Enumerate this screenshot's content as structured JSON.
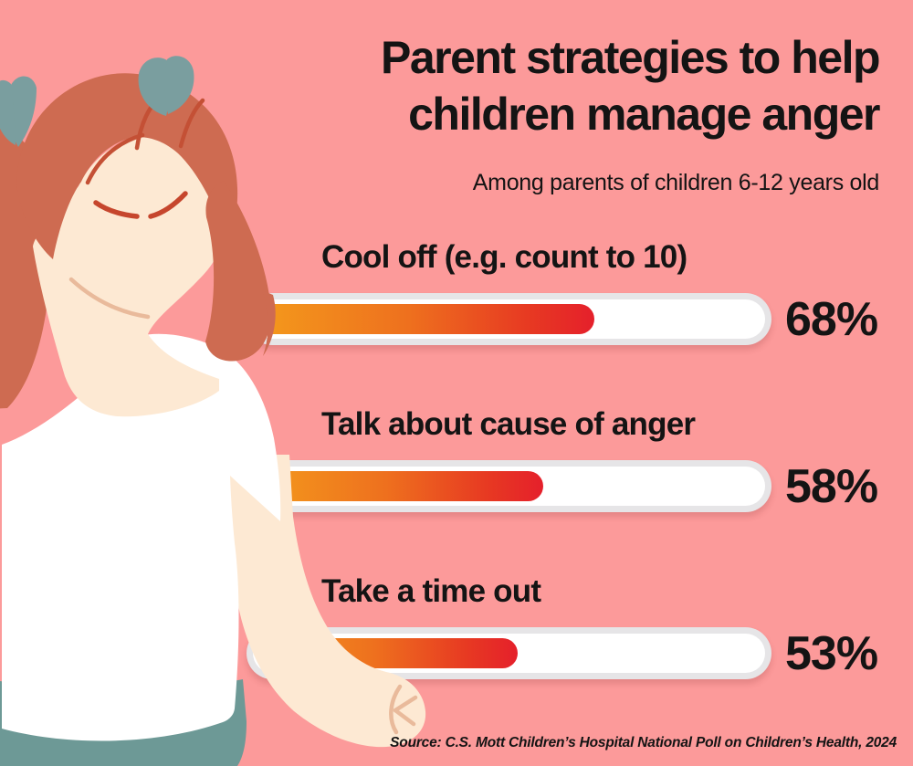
{
  "header": {
    "title_line1": "Parent strategies to help",
    "title_line2": "children manage anger",
    "subtitle": "Among parents of children 6-12 years old"
  },
  "chart_data": {
    "type": "bar",
    "orientation": "horizontal",
    "categories": [
      "Cool off (e.g. count to 10)",
      "Talk about cause of anger",
      "Take a time out"
    ],
    "values": [
      68,
      58,
      53
    ],
    "value_labels": [
      "68%",
      "58%",
      "53%"
    ],
    "xlim": [
      0,
      100
    ],
    "unit": "%",
    "title": "Parent strategies to help children manage anger",
    "subtitle": "Among parents of children 6-12 years old",
    "bar_style": "rounded capsule track with orange-to-red gradient fill",
    "grid": false,
    "legend": false
  },
  "footer": {
    "source": "Source: C.S. Mott Children’s Hospital National Poll on Children’s Health, 2024"
  },
  "illustration": {
    "description": "angry girl with auburn pigtails, teal hair bows, closed slanted eyes, white t-shirt, teal skirt, clenched fist"
  },
  "colors": {
    "bg": "#FC9A9A",
    "text": "#141414",
    "track": "#E6E5E7",
    "grad1": "#F49A1C",
    "grad2": "#EE701E",
    "grad3": "#E73A22",
    "grad4": "#E5202B",
    "hair": "#CE6B51",
    "hairline": "#C45035",
    "skin": "#FDE9D3",
    "skinline": "#E9BA9B",
    "eye": "#C6462D",
    "bow": "#7A9E9F",
    "shirt": "#FFFFFF",
    "skirt": "#6D9996"
  }
}
